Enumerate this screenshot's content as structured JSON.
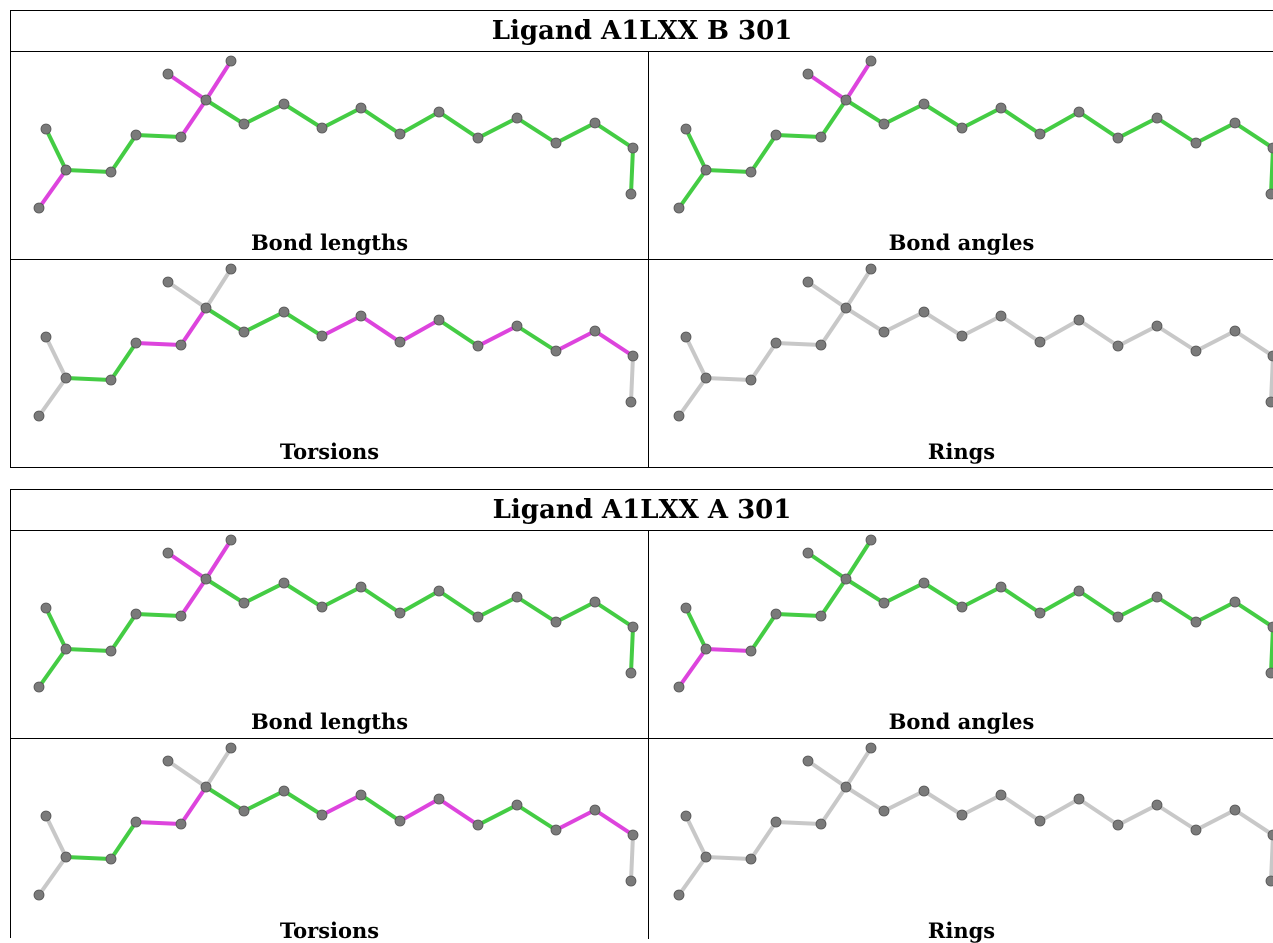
{
  "colors": {
    "normal": "#44cc44",
    "outlier": "#dd44dd",
    "unassessed": "#c8c8c8",
    "atom": "#7a7a7a"
  },
  "icons": {
    "molecule": "ligand-molecule-icon"
  },
  "ligands": [
    {
      "title": "Ligand A1LXX B 301",
      "panels": [
        {
          "caption": "Bond lengths",
          "bonds": [
            "outlier",
            "normal",
            "normal",
            "normal",
            "normal",
            "outlier",
            "outlier",
            "outlier",
            "normal",
            "normal",
            "normal",
            "normal",
            "normal",
            "normal",
            "normal",
            "normal",
            "normal",
            "normal",
            "normal",
            "normal"
          ]
        },
        {
          "caption": "Bond angles",
          "bonds": [
            "normal",
            "normal",
            "normal",
            "normal",
            "normal",
            "normal",
            "outlier",
            "outlier",
            "normal",
            "normal",
            "normal",
            "normal",
            "normal",
            "normal",
            "normal",
            "normal",
            "normal",
            "normal",
            "normal",
            "normal"
          ]
        },
        {
          "caption": "Torsions",
          "bonds": [
            "unassessed",
            "unassessed",
            "normal",
            "normal",
            "outlier",
            "outlier",
            "unassessed",
            "unassessed",
            "normal",
            "normal",
            "normal",
            "outlier",
            "outlier",
            "outlier",
            "normal",
            "outlier",
            "normal",
            "outlier",
            "outlier",
            "unassessed"
          ]
        },
        {
          "caption": "Rings",
          "bonds": [
            "unassessed",
            "unassessed",
            "unassessed",
            "unassessed",
            "unassessed",
            "unassessed",
            "unassessed",
            "unassessed",
            "unassessed",
            "unassessed",
            "unassessed",
            "unassessed",
            "unassessed",
            "unassessed",
            "unassessed",
            "unassessed",
            "unassessed",
            "unassessed",
            "unassessed",
            "unassessed"
          ]
        }
      ]
    },
    {
      "title": "Ligand A1LXX A 301",
      "panels": [
        {
          "caption": "Bond lengths",
          "bonds": [
            "normal",
            "normal",
            "normal",
            "normal",
            "normal",
            "outlier",
            "outlier",
            "outlier",
            "normal",
            "normal",
            "normal",
            "normal",
            "normal",
            "normal",
            "normal",
            "normal",
            "normal",
            "normal",
            "normal",
            "normal"
          ]
        },
        {
          "caption": "Bond angles",
          "bonds": [
            "outlier",
            "normal",
            "outlier",
            "normal",
            "normal",
            "normal",
            "normal",
            "normal",
            "normal",
            "normal",
            "normal",
            "normal",
            "normal",
            "normal",
            "normal",
            "normal",
            "normal",
            "normal",
            "normal",
            "normal"
          ]
        },
        {
          "caption": "Torsions",
          "bonds": [
            "unassessed",
            "unassessed",
            "normal",
            "normal",
            "outlier",
            "outlier",
            "unassessed",
            "unassessed",
            "normal",
            "normal",
            "normal",
            "outlier",
            "normal",
            "outlier",
            "outlier",
            "normal",
            "normal",
            "outlier",
            "outlier",
            "unassessed"
          ]
        },
        {
          "caption": "Rings",
          "bonds": [
            "unassessed",
            "unassessed",
            "unassessed",
            "unassessed",
            "unassessed",
            "unassessed",
            "unassessed",
            "unassessed",
            "unassessed",
            "unassessed",
            "unassessed",
            "unassessed",
            "unassessed",
            "unassessed",
            "unassessed",
            "unassessed",
            "unassessed",
            "unassessed",
            "unassessed",
            "unassessed"
          ]
        }
      ]
    }
  ]
}
